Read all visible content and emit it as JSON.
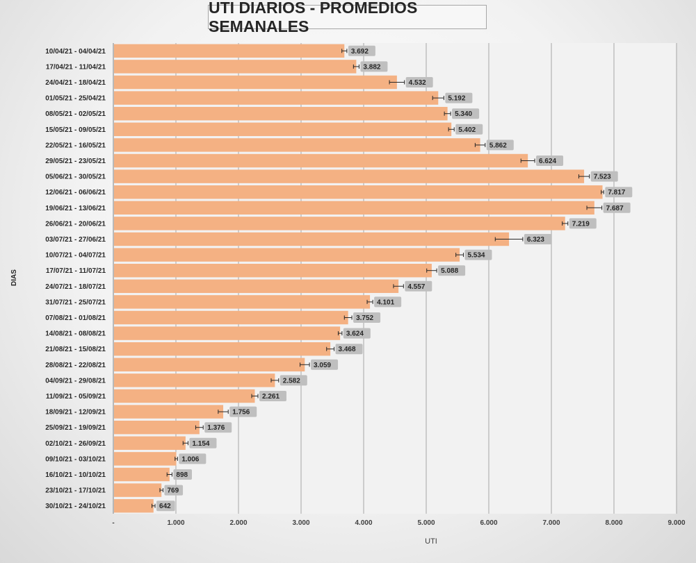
{
  "chart_data": {
    "type": "bar",
    "orientation": "horizontal",
    "title": "UTI DIARIOS - PROMEDIOS SEMANALES",
    "xlabel": "UTI",
    "ylabel": "DIAS",
    "xlim": [
      0,
      9000
    ],
    "x_ticks": [
      0,
      1000,
      2000,
      3000,
      4000,
      5000,
      6000,
      7000,
      8000,
      9000
    ],
    "x_tick_labels": [
      "-",
      "1.000",
      "2.000",
      "3.000",
      "4.000",
      "5.000",
      "6.000",
      "7.000",
      "8.000",
      "9.000"
    ],
    "grid": true,
    "bar_color": "#f4b183",
    "label_bg_color": "#bfbfbf",
    "categories": [
      "10/04/21 - 04/04/21",
      "17/04/21 - 11/04/21",
      "24/04/21 - 18/04/21",
      "01/05/21 - 25/04/21",
      "08/05/21 - 02/05/21",
      "15/05/21 - 09/05/21",
      "22/05/21 - 16/05/21",
      "29/05/21 - 23/05/21",
      "05/06/21 - 30/05/21",
      "12/06/21 - 06/06/21",
      "19/06/21 - 13/06/21",
      "26/06/21 - 20/06/21",
      "03/07/21 - 27/06/21",
      "10/07/21 - 04/07/21",
      "17/07/21 - 11/07/21",
      "24/07/21 - 18/07/21",
      "31/07/21 - 25/07/21",
      "07/08/21 - 01/08/21",
      "14/08/21 - 08/08/21",
      "21/08/21 - 15/08/21",
      "28/08/21 - 22/08/21",
      "04/09/21 - 29/08/21",
      "11/09/21 - 05/09/21",
      "18/09/21 - 12/09/21",
      "25/09/21 - 19/09/21",
      "02/10/21 - 26/09/21",
      "09/10/21 - 03/10/21",
      "16/10/21 - 10/10/21",
      "23/10/21 - 17/10/21",
      "30/10/21 - 24/10/21"
    ],
    "values": [
      3692,
      3882,
      4532,
      5192,
      5340,
      5402,
      5862,
      6624,
      7523,
      7817,
      7687,
      7219,
      6323,
      5534,
      5088,
      4557,
      4101,
      3752,
      3624,
      3468,
      3059,
      2582,
      2261,
      1756,
      1376,
      1154,
      1006,
      898,
      769,
      642
    ],
    "value_labels": [
      "3.692",
      "3.882",
      "4.532",
      "5.192",
      "5.340",
      "5.402",
      "5.862",
      "6.624",
      "7.523",
      "7.817",
      "7.687",
      "7.219",
      "6.323",
      "5.534",
      "5.088",
      "4.557",
      "4.101",
      "3.752",
      "3.624",
      "3.468",
      "3.059",
      "2.582",
      "2.261",
      "1.756",
      "1.376",
      "1.154",
      "1.006",
      "898",
      "769",
      "642"
    ],
    "error_bars": [
      40,
      45,
      120,
      90,
      50,
      45,
      80,
      110,
      85,
      20,
      120,
      45,
      220,
      60,
      80,
      80,
      45,
      60,
      30,
      60,
      75,
      60,
      50,
      80,
      60,
      40,
      20,
      40,
      25,
      25
    ]
  }
}
